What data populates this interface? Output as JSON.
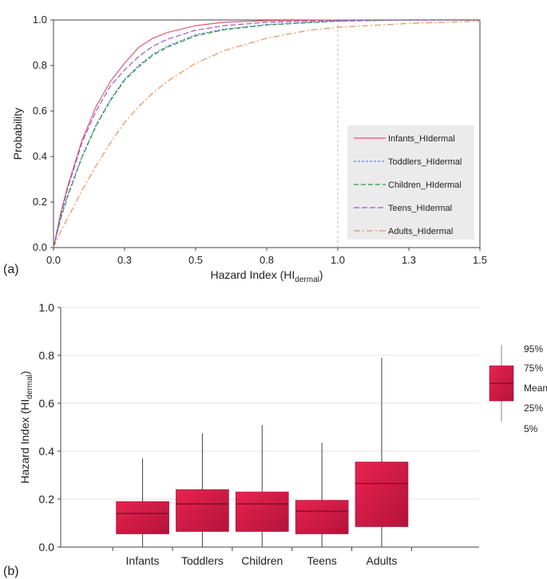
{
  "chart_data": [
    {
      "panel_label": "(a)",
      "type": "line",
      "xlabel_main": "Hazard Index (HI",
      "xlabel_sub": "dermal",
      "xlabel_end": ")",
      "ylabel": "Probability",
      "xlim": [
        0,
        1.5
      ],
      "ylim": [
        0,
        1.0
      ],
      "xticks": [
        "0.0",
        "0.3",
        "0.5",
        "0.8",
        "1.0",
        "1.3",
        "1.5"
      ],
      "xtick_values": [
        0,
        0.25,
        0.5,
        0.75,
        1.0,
        1.25,
        1.5
      ],
      "yticks": [
        "0.0",
        "0.2",
        "0.4",
        "0.6",
        "0.8",
        "1.0"
      ],
      "ytick_values": [
        0,
        0.2,
        0.4,
        0.6,
        0.8,
        1.0
      ],
      "reference_line_x": 1.0,
      "legend_position": "right",
      "series": [
        {
          "name": "Infants_HIdermal",
          "color": "#e05a6e",
          "dash": "solid",
          "x": [
            0,
            0.025,
            0.05,
            0.1,
            0.15,
            0.2,
            0.25,
            0.3,
            0.35,
            0.4,
            0.5,
            0.6,
            0.75,
            1.0,
            1.25,
            1.5
          ],
          "y": [
            0,
            0.15,
            0.27,
            0.47,
            0.62,
            0.73,
            0.81,
            0.88,
            0.92,
            0.945,
            0.975,
            0.99,
            0.997,
            1.0,
            1.0,
            1.0
          ]
        },
        {
          "name": "Toddlers_HIdermal",
          "color": "#6a7fe0",
          "dash": "3,2",
          "x": [
            0,
            0.025,
            0.05,
            0.1,
            0.15,
            0.2,
            0.25,
            0.3,
            0.35,
            0.4,
            0.5,
            0.6,
            0.75,
            1.0,
            1.25,
            1.5
          ],
          "y": [
            0,
            0.13,
            0.23,
            0.4,
            0.54,
            0.65,
            0.74,
            0.8,
            0.85,
            0.885,
            0.935,
            0.96,
            0.98,
            0.995,
            1.0,
            1.0
          ]
        },
        {
          "name": "Children_HIdermal",
          "color": "#2e9b3e",
          "dash": "6,3",
          "x": [
            0,
            0.025,
            0.05,
            0.1,
            0.15,
            0.2,
            0.25,
            0.3,
            0.35,
            0.4,
            0.5,
            0.6,
            0.75,
            1.0,
            1.25,
            1.5
          ],
          "y": [
            0,
            0.125,
            0.225,
            0.395,
            0.535,
            0.645,
            0.735,
            0.795,
            0.845,
            0.88,
            0.93,
            0.957,
            0.978,
            0.995,
            1.0,
            1.0
          ]
        },
        {
          "name": "Teens_HIdermal",
          "color": "#9b59c8",
          "dash": "7,3",
          "x": [
            0,
            0.025,
            0.05,
            0.1,
            0.15,
            0.2,
            0.25,
            0.3,
            0.35,
            0.4,
            0.5,
            0.6,
            0.75,
            1.0,
            1.25,
            1.5
          ],
          "y": [
            0,
            0.14,
            0.26,
            0.46,
            0.6,
            0.71,
            0.78,
            0.84,
            0.885,
            0.915,
            0.955,
            0.975,
            0.99,
            0.998,
            1.0,
            1.0
          ]
        },
        {
          "name": "Adults_HIdermal",
          "color": "#e8935a",
          "dash": "8,3,2,3",
          "x": [
            0,
            0.025,
            0.05,
            0.1,
            0.15,
            0.2,
            0.25,
            0.3,
            0.35,
            0.4,
            0.5,
            0.6,
            0.75,
            0.9,
            1.0,
            1.25,
            1.5
          ],
          "y": [
            0,
            0.07,
            0.13,
            0.25,
            0.36,
            0.46,
            0.55,
            0.62,
            0.68,
            0.73,
            0.81,
            0.865,
            0.92,
            0.955,
            0.968,
            0.985,
            0.995
          ]
        }
      ]
    },
    {
      "panel_label": "(b)",
      "type": "box",
      "ylabel_main": "Hazard Index (HI",
      "ylabel_sub": "dermal",
      "ylabel_end": ")",
      "ylim": [
        0,
        1.0
      ],
      "yticks": [
        "0.0",
        "0.2",
        "0.4",
        "0.6",
        "0.8",
        "1.0"
      ],
      "ytick_values": [
        0,
        0.2,
        0.4,
        0.6,
        0.8,
        1.0
      ],
      "categories": [
        "Infants",
        "Toddlers",
        "Children",
        "Teens",
        "Adults"
      ],
      "box_color": "#d81b45",
      "boxes": [
        {
          "p5": 0.0,
          "p25": 0.055,
          "mean": 0.14,
          "p75": 0.19,
          "p95": 0.37
        },
        {
          "p5": 0.0,
          "p25": 0.065,
          "mean": 0.18,
          "p75": 0.24,
          "p95": 0.475
        },
        {
          "p5": 0.0,
          "p25": 0.065,
          "mean": 0.18,
          "p75": 0.23,
          "p95": 0.51
        },
        {
          "p5": 0.0,
          "p25": 0.055,
          "mean": 0.15,
          "p75": 0.195,
          "p95": 0.435
        },
        {
          "p5": 0.0,
          "p25": 0.085,
          "mean": 0.265,
          "p75": 0.355,
          "p95": 0.79
        }
      ],
      "legend_labels": [
        "95%",
        "75%",
        "Mean",
        "25%",
        "5%"
      ]
    }
  ]
}
